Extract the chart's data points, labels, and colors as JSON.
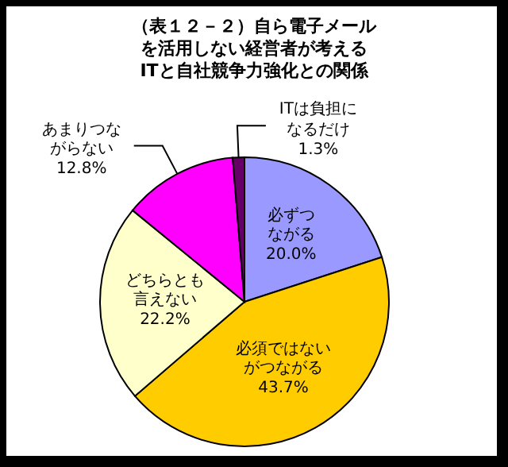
{
  "chart_data": {
    "type": "pie",
    "title": "（表１２－２）自ら電子メールを活用しない経営者が考えるITと自社競争力強化との関係",
    "categories": [
      "必ずつながる",
      "必須ではないがつながる",
      "どちらとも言えない",
      "あまりつながらない",
      "ITは負担になるだけ"
    ],
    "values": [
      20.0,
      43.7,
      22.2,
      12.8,
      1.3
    ],
    "value_labels": [
      "20.0%",
      "43.7%",
      "22.2%",
      "12.8%",
      "1.3%"
    ],
    "colors": [
      "#9999ff",
      "#ffcc00",
      "#ffffcc",
      "#ff00ff",
      "#660066"
    ],
    "legend": false
  }
}
